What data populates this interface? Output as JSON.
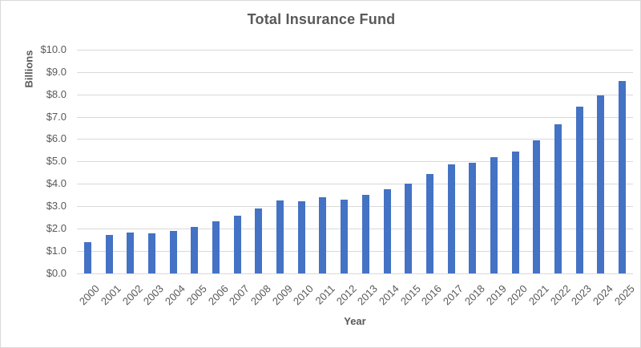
{
  "chart_data": {
    "type": "bar",
    "title": "Total Insurance Fund",
    "xlabel": "Year",
    "ylabel": "Billions",
    "categories": [
      "2000",
      "2001",
      "2002",
      "2003",
      "2004",
      "2005",
      "2006",
      "2007",
      "2008",
      "2009",
      "2010",
      "2011",
      "2012",
      "2013",
      "2014",
      "2015",
      "2016",
      "2017",
      "2018",
      "2019",
      "2020",
      "2021",
      "2022",
      "2023",
      "2024",
      "2025"
    ],
    "values": [
      1.4,
      1.7,
      1.82,
      1.78,
      1.9,
      2.05,
      2.3,
      2.55,
      2.9,
      3.25,
      3.2,
      3.4,
      3.3,
      3.5,
      3.75,
      4.0,
      4.45,
      4.85,
      4.95,
      5.2,
      5.45,
      5.95,
      6.65,
      7.45,
      7.95,
      8.6
    ],
    "ylim": [
      0,
      10
    ],
    "y_tick_step": 1,
    "y_tick_labels": [
      "$0.0",
      "$1.0",
      "$2.0",
      "$3.0",
      "$4.0",
      "$5.0",
      "$6.0",
      "$7.0",
      "$8.0",
      "$9.0",
      "$10.0"
    ],
    "grid": true,
    "legend": false,
    "colors": {
      "bar": "#4472C4",
      "text": "#595959",
      "gridline": "#D9D9D9",
      "border": "#D9D9D9",
      "background": "#FFFFFF"
    }
  }
}
